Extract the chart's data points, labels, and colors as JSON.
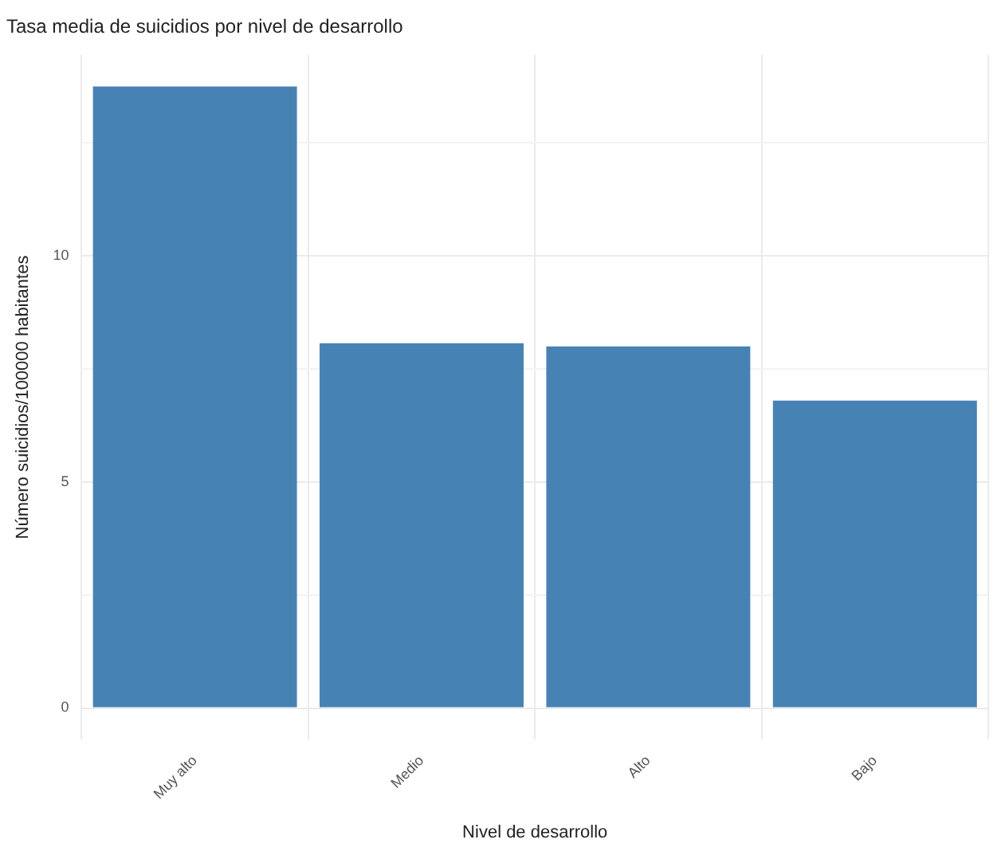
{
  "chart_data": {
    "type": "bar",
    "title": "Tasa media de suicidios por nivel de desarrollo",
    "xlabel": "Nivel de desarrollo",
    "ylabel": "Número suicidios/100000 habitantes",
    "categories": [
      "Muy alto",
      "Medio",
      "Alto",
      "Bajo"
    ],
    "values": [
      13.75,
      8.07,
      8.0,
      6.8
    ],
    "color": "#4682b4",
    "ylim": [
      -0.7,
      14.45
    ],
    "yticks": [
      0,
      {
        "value": 2.5,
        "label": null
      },
      5,
      {
        "value": 7.5,
        "label": null
      },
      10,
      {
        "value": 12.5,
        "label": null
      }
    ],
    "grid": true,
    "legend": false
  }
}
